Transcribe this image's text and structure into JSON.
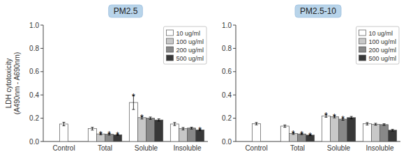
{
  "chart_data": [
    {
      "type": "bar",
      "title": "PM2.5",
      "ylabel": "LDH cytotoxicity\n(A490nm - A690nm)",
      "categories": [
        "Control",
        "Total",
        "Soluble",
        "Insoluble"
      ],
      "series": [
        {
          "name": "10 ug/ml",
          "color": "#ffffff",
          "values": [
            0.15,
            0.11,
            0.335,
            0.15
          ],
          "errors": [
            0.015,
            0.012,
            0.06,
            0.013
          ],
          "annotations": [
            null,
            null,
            "*",
            null
          ]
        },
        {
          "name": "100 ug/ml",
          "color": "#c8c8c8",
          "values": [
            null,
            0.065,
            0.205,
            0.11
          ],
          "errors": [
            null,
            0.008,
            0.012,
            0.01
          ],
          "annotations": [
            null,
            "*",
            "*",
            null
          ]
        },
        {
          "name": "200 ug/ml",
          "color": "#888888",
          "values": [
            null,
            0.062,
            0.2,
            0.115
          ],
          "errors": [
            null,
            0.007,
            0.01,
            0.008
          ],
          "annotations": [
            null,
            "*",
            null,
            null
          ]
        },
        {
          "name": "500 ug/ml",
          "color": "#383838",
          "values": [
            null,
            0.058,
            0.185,
            0.1
          ],
          "errors": [
            null,
            0.006,
            0.009,
            0.007
          ],
          "annotations": [
            null,
            "*",
            null,
            "*"
          ]
        }
      ],
      "ylim": [
        0.0,
        1.0
      ],
      "yticks": [
        {
          "value": 0.0,
          "label": "0.0"
        },
        0.2,
        0.4,
        0.6,
        0.8,
        {
          "value": 1.0,
          "label": "1.0"
        }
      ],
      "grid": false,
      "legend": "upper right"
    },
    {
      "type": "bar",
      "title": "PM2.5-10",
      "categories": [
        "Control",
        "Total",
        "Soluble",
        "Insoluble"
      ],
      "series": [
        {
          "name": "10 ug/ml",
          "color": "#ffffff",
          "values": [
            0.153,
            0.132,
            0.22,
            0.152
          ],
          "errors": [
            0.01,
            0.01,
            0.012,
            0.01
          ],
          "annotations": [
            null,
            null,
            "*",
            null
          ]
        },
        {
          "name": "100 ug/ml",
          "color": "#c8c8c8",
          "values": [
            null,
            0.068,
            0.213,
            0.148
          ],
          "errors": [
            null,
            0.007,
            0.01,
            0.008
          ],
          "annotations": [
            null,
            "*",
            "*",
            null
          ]
        },
        {
          "name": "200 ug/ml",
          "color": "#888888",
          "values": [
            null,
            0.065,
            0.192,
            0.145
          ],
          "errors": [
            null,
            0.006,
            0.009,
            0.007
          ],
          "annotations": [
            null,
            "*",
            "*",
            null
          ]
        },
        {
          "name": "500 ug/ml",
          "color": "#383838",
          "values": [
            null,
            0.055,
            0.205,
            0.097
          ],
          "errors": [
            null,
            0.005,
            0.01,
            0.007
          ],
          "annotations": [
            null,
            "*",
            null,
            null
          ]
        }
      ],
      "ylim": [
        0.0,
        1.0
      ],
      "yticks": [
        {
          "value": 0.0,
          "label": "0.0"
        },
        0.2,
        0.4,
        0.6,
        0.8,
        {
          "value": 1.0,
          "label": "1.0"
        }
      ],
      "grid": false,
      "legend": "upper right"
    }
  ]
}
